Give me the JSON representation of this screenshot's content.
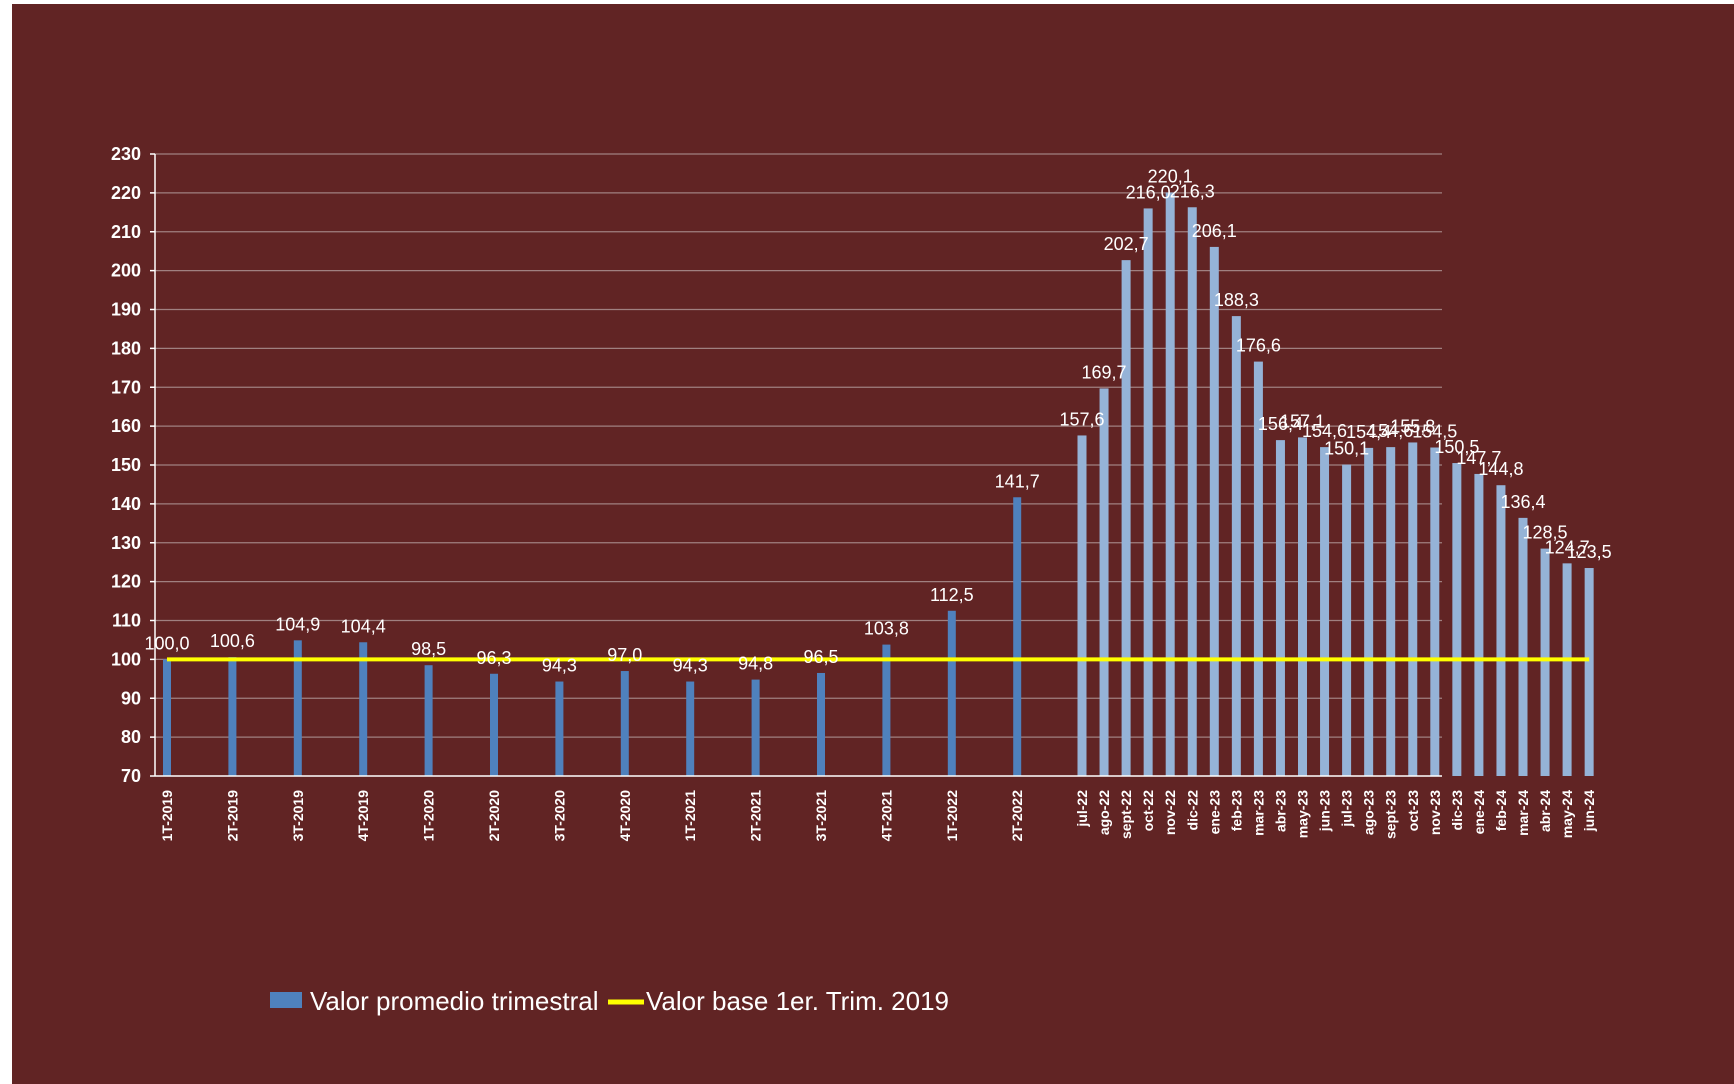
{
  "chart_data": {
    "type": "bar",
    "categories": [
      "1T-2019",
      "2T-2019",
      "3T-2019",
      "4T-2019",
      "1T-2020",
      "2T-2020",
      "3T-2020",
      "4T-2020",
      "1T-2021",
      "2T-2021",
      "3T-2021",
      "4T-2021",
      "1T-2022",
      "2T-2022",
      "jul-22",
      "ago-22",
      "sept-22",
      "oct-22",
      "nov-22",
      "dic-22",
      "ene-23",
      "feb-23",
      "mar-23",
      "abr-23",
      "may-23",
      "jun-23",
      "jul-23",
      "ago-23",
      "sept-23",
      "oct-23",
      "nov-23",
      "dic-23",
      "ene-24",
      "feb-24",
      "mar-24",
      "abr-24",
      "may-24",
      "jun-24"
    ],
    "values": [
      100.0,
      100.6,
      104.9,
      104.4,
      98.5,
      96.3,
      94.3,
      97.0,
      94.3,
      94.8,
      96.5,
      103.8,
      112.5,
      141.7,
      157.6,
      169.7,
      202.7,
      216.0,
      220.1,
      216.3,
      206.1,
      188.3,
      176.6,
      156.4,
      157.1,
      154.6,
      150.1,
      154.4,
      154.6,
      155.8,
      154.5,
      150.5,
      147.7,
      144.8,
      136.4,
      128.5,
      124.7,
      123.5
    ],
    "data_labels": [
      "100,0",
      "100,6",
      "104,9",
      "104,4",
      "98,5",
      "96,3",
      "94,3",
      "97,0",
      "94,3",
      "94,8",
      "96,5",
      "103,8",
      "112,5",
      "141,7",
      "157,6",
      "169,7",
      "202,7",
      "216,0",
      "220,1",
      "216,3",
      "206,1",
      "188,3",
      "176,6",
      "156,4",
      "157,1",
      "154,6",
      "150,1",
      "154,4",
      "154,6",
      "155,8",
      "154,5",
      "150,5",
      "147,7",
      "144,8",
      "136,4",
      "128,5",
      "124,7",
      "123,5"
    ],
    "series": [
      {
        "name": "Valor promedio trimestral",
        "color": "#4f81bd",
        "color_monthly": "#95b3d7"
      },
      {
        "name": "Valor base 1er. Trim. 2019",
        "color": "#ffff00",
        "value": 100
      }
    ],
    "ylim": [
      70,
      230
    ],
    "yticks": [
      70,
      80,
      90,
      100,
      110,
      120,
      130,
      140,
      150,
      160,
      170,
      180,
      190,
      200,
      210,
      220,
      230
    ],
    "grid": true,
    "legend_position": "bottom",
    "title": "",
    "xlabel": "",
    "ylabel": ""
  },
  "colors": {
    "background": "#612424",
    "gridline": "#a08080",
    "axis": "#ffffff",
    "text": "#ffffff"
  }
}
